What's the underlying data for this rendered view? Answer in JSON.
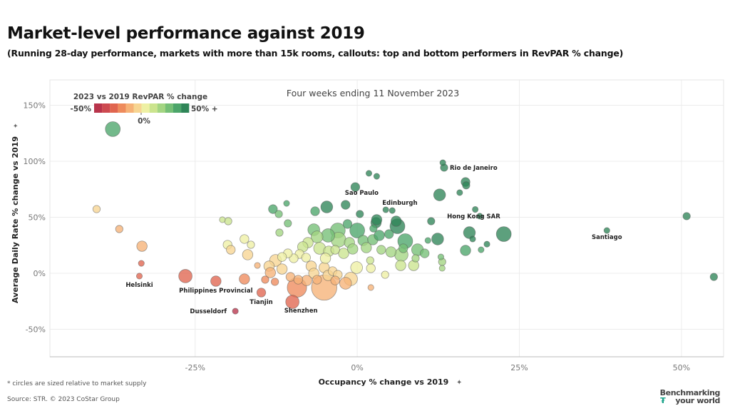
{
  "header": {
    "title": "Market-level performance against 2019",
    "subtitle": "(Running 28-day performance, markets with more than 15k rooms, callouts: top and bottom performers in RevPAR % change)"
  },
  "footer": {
    "note": "* circles are sized relative to market supply",
    "source": "Source: STR. © 2023 CoStar Group",
    "brand_line1": "Benchmarking",
    "brand_line2": "your world",
    "brand_icon": "str-logo-icon"
  },
  "chart_data": {
    "type": "scatter",
    "title": "Four weeks ending 11 November 2023",
    "xlabel": "Occupancy % change vs 2019",
    "ylabel": "Average Daily Rate % change vs 2019",
    "axis_pin_icon": "pin-icon",
    "xlim": [
      -47.4,
      56.5
    ],
    "ylim": [
      -74.5,
      172.6
    ],
    "xticks": [
      {
        "v": -25,
        "label": "-25%"
      },
      {
        "v": 0,
        "label": "0%"
      },
      {
        "v": 25,
        "label": "25%"
      },
      {
        "v": 50,
        "label": "50%"
      }
    ],
    "yticks": [
      {
        "v": -50,
        "label": "-50%"
      },
      {
        "v": 0,
        "label": "0%"
      },
      {
        "v": 50,
        "label": "50%"
      },
      {
        "v": 100,
        "label": "100%"
      },
      {
        "v": 150,
        "label": "150%"
      }
    ],
    "grid": true,
    "legend": {
      "title": "2023 vs 2019 RevPAR % change",
      "min_label": "-50%",
      "mid_label": "0%",
      "max_label": "50% +",
      "placement": "top-left",
      "colors": [
        "#b8344b",
        "#cd4a50",
        "#e0654f",
        "#ee8b5c",
        "#f6b277",
        "#f7d592",
        "#eef0a4",
        "#cbe48e",
        "#a3d582",
        "#75bf76",
        "#4ca56a",
        "#2f8558"
      ]
    },
    "size_unit": "relative supply",
    "points": [
      {
        "occ": -37.7,
        "adr": 128.7,
        "size": 9
      },
      {
        "occ": -40.2,
        "adr": 57.3,
        "size": 4
      },
      {
        "occ": -36.7,
        "adr": 39.5,
        "size": 4
      },
      {
        "occ": -33.2,
        "adr": 24.2,
        "size": 6
      },
      {
        "occ": -33.3,
        "adr": 8.9,
        "size": 3
      },
      {
        "occ": -33.6,
        "adr": -2.5,
        "size": 3,
        "label": "Helsinki"
      },
      {
        "occ": -26.5,
        "adr": -2.5,
        "size": 8
      },
      {
        "occ": -21.8,
        "adr": -7.0,
        "size": 6,
        "label": "Philippines Provincial"
      },
      {
        "occ": -18.8,
        "adr": -33.8,
        "size": 3,
        "label": "Dusseldorf"
      },
      {
        "occ": -14.8,
        "adr": -17.2,
        "size": 5,
        "label": "Tianjin"
      },
      {
        "occ": -10.0,
        "adr": -25.5,
        "size": 8,
        "label": "Shenzhen"
      },
      {
        "occ": -9.3,
        "adr": -12.7,
        "size": 12
      },
      {
        "occ": -5.1,
        "adr": -12.7,
        "size": 16
      },
      {
        "occ": -1.0,
        "adr": -5.0,
        "size": 8
      },
      {
        "occ": -17.4,
        "adr": -5.1,
        "size": 6
      },
      {
        "occ": -14.2,
        "adr": -5.7,
        "size": 4
      },
      {
        "occ": -12.7,
        "adr": -7.6,
        "size": 4
      },
      {
        "occ": 13.2,
        "adr": 98.7,
        "size": 3
      },
      {
        "occ": 13.4,
        "adr": 94.3,
        "size": 4,
        "label": "Rio de Janeiro"
      },
      {
        "occ": 16.7,
        "adr": 81.5,
        "size": 5
      },
      {
        "occ": 16.8,
        "adr": 78.5,
        "size": 4
      },
      {
        "occ": 12.7,
        "adr": 70.0,
        "size": 7
      },
      {
        "occ": 15.8,
        "adr": 72.0,
        "size": 3
      },
      {
        "occ": 18.2,
        "adr": 57.0,
        "size": 3
      },
      {
        "occ": 18.9,
        "adr": 51.0,
        "size": 3
      },
      {
        "occ": 11.4,
        "adr": 46.5,
        "size": 4
      },
      {
        "occ": 17.3,
        "adr": 36.3,
        "size": 7,
        "label": "Hong Kong SAR"
      },
      {
        "occ": 22.6,
        "adr": 35.0,
        "size": 9
      },
      {
        "occ": 12.4,
        "adr": 30.6,
        "size": 7
      },
      {
        "occ": 17.8,
        "adr": 30.6,
        "size": 3
      },
      {
        "occ": 20.0,
        "adr": 26.0,
        "size": 3
      },
      {
        "occ": 16.7,
        "adr": 20.4,
        "size": 6
      },
      {
        "occ": 19.1,
        "adr": 21.0,
        "size": 3
      },
      {
        "occ": 12.9,
        "adr": 14.6,
        "size": 3
      },
      {
        "occ": 13.1,
        "adr": 10.2,
        "size": 4
      },
      {
        "occ": 13.1,
        "adr": 4.5,
        "size": 3
      },
      {
        "occ": 38.5,
        "adr": 38.2,
        "size": 3,
        "label": "Santiago"
      },
      {
        "occ": 50.8,
        "adr": 51.0,
        "size": 4
      },
      {
        "occ": 55.0,
        "adr": -3.2,
        "size": 4
      },
      {
        "occ": 1.8,
        "adr": 89.2,
        "size": 3
      },
      {
        "occ": 3.0,
        "adr": 86.6,
        "size": 3
      },
      {
        "occ": -0.3,
        "adr": 77.0,
        "size": 5
      },
      {
        "occ": -1.8,
        "adr": 61.1,
        "size": 5,
        "label": "Sao Paulo"
      },
      {
        "occ": -4.7,
        "adr": 59.2,
        "size": 7
      },
      {
        "occ": -6.5,
        "adr": 55.4,
        "size": 5
      },
      {
        "occ": 5.4,
        "adr": 56.0,
        "size": 3,
        "label": "Edinburgh"
      },
      {
        "occ": 0.4,
        "adr": 52.9,
        "size": 4
      },
      {
        "occ": 2.9,
        "adr": 45.2,
        "size": 6
      },
      {
        "occ": 6.0,
        "adr": 46.5,
        "size": 6
      },
      {
        "occ": 4.9,
        "adr": 35.0,
        "size": 5
      },
      {
        "occ": -10.9,
        "adr": 62.4,
        "size": 3
      },
      {
        "occ": -13.0,
        "adr": 57.3,
        "size": 5
      },
      {
        "occ": -12.1,
        "adr": 52.9,
        "size": 4
      },
      {
        "occ": -20.8,
        "adr": 47.8,
        "size": 3
      },
      {
        "occ": -19.9,
        "adr": 46.5,
        "size": 4
      },
      {
        "occ": -10.7,
        "adr": 44.6,
        "size": 4
      },
      {
        "occ": -12.0,
        "adr": 36.3,
        "size": 4
      },
      {
        "occ": -17.4,
        "adr": 30.6,
        "size": 5
      },
      {
        "occ": -16.4,
        "adr": 25.5,
        "size": 4
      },
      {
        "occ": -20.0,
        "adr": 25.5,
        "size": 5
      },
      {
        "occ": -19.5,
        "adr": 21.0,
        "size": 5
      },
      {
        "occ": -16.9,
        "adr": 16.6,
        "size": 6
      },
      {
        "occ": -12.6,
        "adr": 11.5,
        "size": 7
      },
      {
        "occ": -15.4,
        "adr": 7.0,
        "size": 3
      },
      {
        "occ": -13.6,
        "adr": 6.4,
        "size": 6
      },
      {
        "occ": -13.4,
        "adr": 0.6,
        "size": 6
      },
      {
        "occ": -7.1,
        "adr": 6.4,
        "size": 6
      },
      {
        "occ": -6.7,
        "adr": 0.0,
        "size": 6
      },
      {
        "occ": -11.6,
        "adr": 3.8,
        "size": 6
      },
      {
        "occ": -10.3,
        "adr": -3.2,
        "size": 5
      },
      {
        "occ": -9.1,
        "adr": -5.7,
        "size": 5
      },
      {
        "occ": -5.1,
        "adr": 5.1,
        "size": 6
      },
      {
        "occ": -3.8,
        "adr": 1.9,
        "size": 5
      },
      {
        "occ": -3.0,
        "adr": -1.3,
        "size": 5
      },
      {
        "occ": -7.8,
        "adr": -6.4,
        "size": 6
      },
      {
        "occ": -1.8,
        "adr": -8.9,
        "size": 7
      },
      {
        "occ": -4.5,
        "adr": -1.9,
        "size": 6
      },
      {
        "occ": -3.4,
        "adr": -6.4,
        "size": 5
      },
      {
        "occ": -6.2,
        "adr": -5.7,
        "size": 5
      },
      {
        "occ": -0.1,
        "adr": 5.1,
        "size": 7
      },
      {
        "occ": 2.1,
        "adr": 4.5,
        "size": 5
      },
      {
        "occ": 2.1,
        "adr": -12.7,
        "size": 3
      },
      {
        "occ": 4.3,
        "adr": -1.3,
        "size": 4
      },
      {
        "occ": 6.7,
        "adr": 7.0,
        "size": 6
      },
      {
        "occ": 8.7,
        "adr": 7.0,
        "size": 6
      },
      {
        "occ": 9.0,
        "adr": 13.4,
        "size": 4
      },
      {
        "occ": 10.4,
        "adr": 17.8,
        "size": 5
      },
      {
        "occ": 6.8,
        "adr": 16.6,
        "size": 8
      },
      {
        "occ": 7.1,
        "adr": 22.3,
        "size": 5
      },
      {
        "occ": 7.4,
        "adr": 28.7,
        "size": 9
      },
      {
        "occ": 10.9,
        "adr": 29.3,
        "size": 3
      },
      {
        "occ": 6.2,
        "adr": 42.0,
        "size": 9
      },
      {
        "occ": 3.0,
        "adr": 47.8,
        "size": 6
      },
      {
        "occ": 2.5,
        "adr": 40.0,
        "size": 4
      },
      {
        "occ": 4.4,
        "adr": 56.7,
        "size": 3
      },
      {
        "occ": 0.0,
        "adr": 38.2,
        "size": 9
      },
      {
        "occ": -1.5,
        "adr": 44.0,
        "size": 5
      },
      {
        "occ": -3.0,
        "adr": 38.2,
        "size": 9
      },
      {
        "occ": -4.5,
        "adr": 33.8,
        "size": 8
      },
      {
        "occ": -2.9,
        "adr": 30.0,
        "size": 9
      },
      {
        "occ": -1.2,
        "adr": 27.4,
        "size": 6
      },
      {
        "occ": 0.9,
        "adr": 29.3,
        "size": 6
      },
      {
        "occ": 2.4,
        "adr": 30.0,
        "size": 6
      },
      {
        "occ": 3.4,
        "adr": 33.8,
        "size": 6
      },
      {
        "occ": -6.7,
        "adr": 38.9,
        "size": 7
      },
      {
        "occ": -6.2,
        "adr": 32.5,
        "size": 7
      },
      {
        "occ": -7.6,
        "adr": 27.4,
        "size": 6
      },
      {
        "occ": -8.4,
        "adr": 23.6,
        "size": 6
      },
      {
        "occ": -5.8,
        "adr": 22.3,
        "size": 7
      },
      {
        "occ": -4.4,
        "adr": 19.7,
        "size": 6
      },
      {
        "occ": -3.4,
        "adr": 21.0,
        "size": 5
      },
      {
        "occ": -8.9,
        "adr": 17.2,
        "size": 5
      },
      {
        "occ": -9.8,
        "adr": 13.4,
        "size": 5
      },
      {
        "occ": -10.7,
        "adr": 17.8,
        "size": 5
      },
      {
        "occ": -11.6,
        "adr": 14.6,
        "size": 5
      },
      {
        "occ": -7.9,
        "adr": 14.0,
        "size": 5
      },
      {
        "occ": -4.9,
        "adr": 13.4,
        "size": 6
      },
      {
        "occ": -2.1,
        "adr": 17.8,
        "size": 6
      },
      {
        "occ": -0.7,
        "adr": 21.7,
        "size": 6
      },
      {
        "occ": 1.4,
        "adr": 22.9,
        "size": 6
      },
      {
        "occ": 3.7,
        "adr": 21.0,
        "size": 5
      },
      {
        "occ": 5.2,
        "adr": 19.1,
        "size": 6
      },
      {
        "occ": 9.3,
        "adr": 21.0,
        "size": 7
      },
      {
        "occ": 2.0,
        "adr": 11.5,
        "size": 4
      }
    ]
  }
}
